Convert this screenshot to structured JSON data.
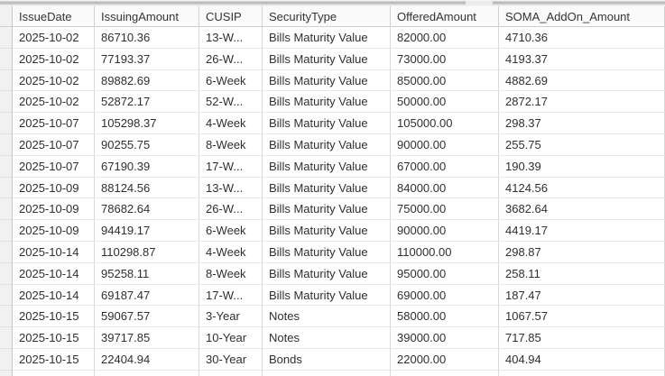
{
  "window": {
    "splitter_bar": "horizontal-splitter",
    "colors": {
      "cell_background": "#ffffff",
      "header_background": "#fafafa",
      "gutter_background": "#f1f1f1",
      "vertical_grid_line": "#d9d9d9",
      "horizontal_grid_line": "#e3e7ee",
      "text": "#2f2f2f",
      "splitter_grey": "#b3b3b3"
    }
  },
  "table": {
    "columns": [
      "IssueDate",
      "IssuingAmount",
      "CUSIP",
      "SecurityType",
      "OfferedAmount",
      "SOMA_AddOn_Amount"
    ],
    "rows": [
      [
        "2025-10-02",
        "86710.36",
        "13-W...",
        "Bills Maturity Value",
        "82000.00",
        "4710.36"
      ],
      [
        "2025-10-02",
        "77193.37",
        "26-W...",
        "Bills Maturity Value",
        "73000.00",
        "4193.37"
      ],
      [
        "2025-10-02",
        "89882.69",
        "6-Week",
        "Bills Maturity Value",
        "85000.00",
        "4882.69"
      ],
      [
        "2025-10-02",
        "52872.17",
        "52-W...",
        "Bills Maturity Value",
        "50000.00",
        "2872.17"
      ],
      [
        "2025-10-07",
        "105298.37",
        "4-Week",
        "Bills Maturity Value",
        "105000.00",
        "298.37"
      ],
      [
        "2025-10-07",
        "90255.75",
        "8-Week",
        "Bills Maturity Value",
        "90000.00",
        "255.75"
      ],
      [
        "2025-10-07",
        "67190.39",
        "17-W...",
        "Bills Maturity Value",
        "67000.00",
        "190.39"
      ],
      [
        "2025-10-09",
        "88124.56",
        "13-W...",
        "Bills Maturity Value",
        "84000.00",
        "4124.56"
      ],
      [
        "2025-10-09",
        "78682.64",
        "26-W...",
        "Bills Maturity Value",
        "75000.00",
        "3682.64"
      ],
      [
        "2025-10-09",
        "94419.17",
        "6-Week",
        "Bills Maturity Value",
        "90000.00",
        "4419.17"
      ],
      [
        "2025-10-14",
        "110298.87",
        "4-Week",
        "Bills Maturity Value",
        "110000.00",
        "298.87"
      ],
      [
        "2025-10-14",
        "95258.11",
        "8-Week",
        "Bills Maturity Value",
        "95000.00",
        "258.11"
      ],
      [
        "2025-10-14",
        "69187.47",
        "17-W...",
        "Bills Maturity Value",
        "69000.00",
        "187.47"
      ],
      [
        "2025-10-15",
        "59067.57",
        "3-Year",
        "Notes",
        "58000.00",
        "1067.57"
      ],
      [
        "2025-10-15",
        "39717.85",
        "10-Year",
        "Notes",
        "39000.00",
        "717.85"
      ],
      [
        "2025-10-15",
        "22404.94",
        "30-Year",
        "Bonds",
        "22000.00",
        "404.94"
      ]
    ]
  }
}
